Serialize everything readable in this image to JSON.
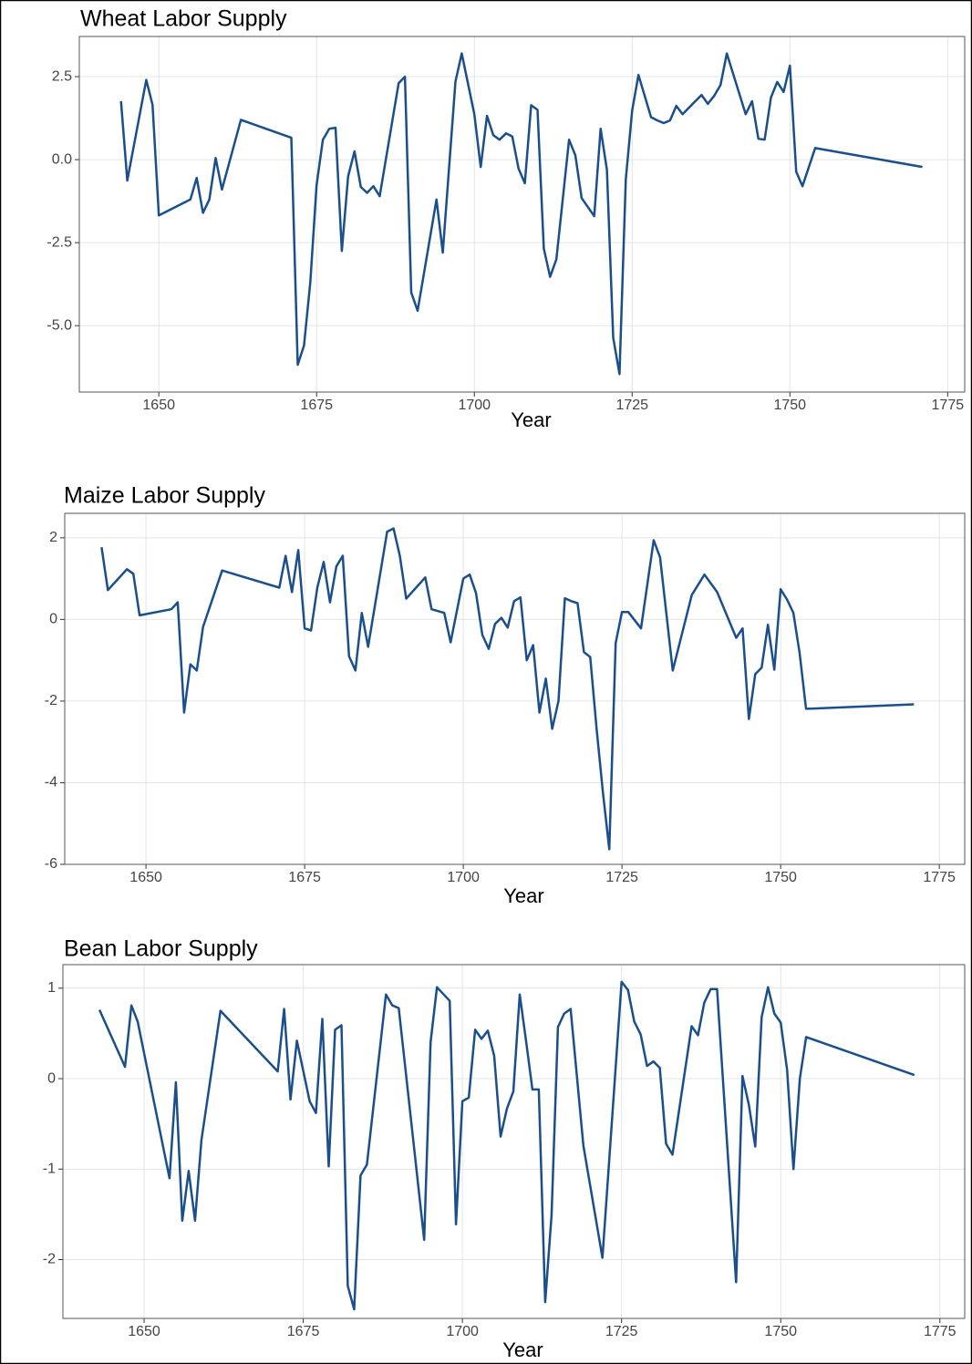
{
  "chart_data": [
    {
      "type": "line",
      "title": "Wheat Labor Supply",
      "x_label": "Year",
      "color": "#1a4f8b",
      "grid": true,
      "x": [
        1644,
        1645,
        1648,
        1649,
        1650,
        1655,
        1656,
        1657,
        1658,
        1659,
        1660,
        1663,
        1671,
        1672,
        1673,
        1674,
        1675,
        1676,
        1677,
        1678,
        1679,
        1680,
        1681,
        1682,
        1683,
        1684,
        1685,
        1688,
        1689,
        1690,
        1691,
        1694,
        1695,
        1697,
        1698,
        1700,
        1701,
        1702,
        1703,
        1704,
        1705,
        1706,
        1707,
        1708,
        1709,
        1710,
        1711,
        1712,
        1713,
        1715,
        1716,
        1717,
        1719,
        1720,
        1721,
        1722,
        1723,
        1724,
        1725,
        1726,
        1728,
        1729,
        1730,
        1731,
        1732,
        1733,
        1736,
        1737,
        1738,
        1739,
        1740,
        1743,
        1744,
        1745,
        1746,
        1747,
        1748,
        1749,
        1750,
        1751,
        1752,
        1754,
        1771
      ],
      "values": [
        1.76,
        -0.63,
        2.4,
        1.65,
        -1.68,
        -1.2,
        -0.55,
        -1.6,
        -1.2,
        0.05,
        -0.9,
        1.2,
        0.66,
        -6.18,
        -5.6,
        -3.7,
        -0.77,
        0.6,
        0.93,
        0.96,
        -2.75,
        -0.5,
        0.25,
        -0.82,
        -1.0,
        -0.8,
        -1.1,
        2.3,
        2.5,
        -4.0,
        -4.55,
        -1.2,
        -2.8,
        2.35,
        3.2,
        1.37,
        -0.22,
        1.32,
        0.74,
        0.6,
        0.79,
        0.7,
        -0.27,
        -0.71,
        1.64,
        1.5,
        -2.68,
        -3.53,
        -3.0,
        0.6,
        0.13,
        -1.16,
        -1.7,
        0.93,
        -0.3,
        -5.36,
        -6.46,
        -0.6,
        1.48,
        2.55,
        1.28,
        1.18,
        1.1,
        1.18,
        1.62,
        1.37,
        1.95,
        1.68,
        1.92,
        2.25,
        3.2,
        1.37,
        1.76,
        0.63,
        0.6,
        1.87,
        2.34,
        2.04,
        2.83,
        -0.36,
        -0.8,
        0.35,
        -0.22
      ],
      "xlim": [
        1637.4,
        1777.7
      ],
      "xticks": [
        1650,
        1675,
        1700,
        1725,
        1750,
        1775
      ],
      "ylim": [
        -7.0,
        3.71
      ],
      "yticks": [
        {
          "value": 2.5,
          "label": "2.5"
        },
        {
          "value": 0,
          "label": "0.0"
        },
        {
          "value": -2.5,
          "label": "-2.5"
        },
        {
          "value": -5,
          "label": "-5.0"
        }
      ]
    },
    {
      "type": "line",
      "title": "Maize Labor Supply",
      "x_label": "Year",
      "color": "#1a4f8b",
      "grid": true,
      "x": [
        1643,
        1644,
        1647,
        1648,
        1649,
        1654,
        1655,
        1656,
        1657,
        1658,
        1659,
        1662,
        1671,
        1672,
        1673,
        1674,
        1675,
        1676,
        1677,
        1678,
        1679,
        1680,
        1681,
        1682,
        1683,
        1684,
        1685,
        1688,
        1689,
        1690,
        1691,
        1694,
        1695,
        1697,
        1698,
        1700,
        1701,
        1702,
        1703,
        1704,
        1705,
        1706,
        1707,
        1708,
        1709,
        1710,
        1711,
        1712,
        1713,
        1714,
        1715,
        1716,
        1717,
        1718,
        1719,
        1720,
        1721,
        1722,
        1723,
        1724,
        1725,
        1726,
        1728,
        1730,
        1731,
        1733,
        1736,
        1738,
        1740,
        1743,
        1744,
        1745,
        1746,
        1747,
        1748,
        1749,
        1750,
        1751,
        1752,
        1753,
        1754,
        1771
      ],
      "values": [
        1.77,
        0.72,
        1.23,
        1.12,
        0.1,
        0.25,
        0.42,
        -2.28,
        -1.1,
        -1.25,
        -0.18,
        1.2,
        0.78,
        1.56,
        0.67,
        1.7,
        -0.22,
        -0.27,
        0.78,
        1.41,
        0.42,
        1.3,
        1.56,
        -0.9,
        -1.25,
        0.16,
        -0.67,
        2.15,
        2.23,
        1.56,
        0.51,
        1.03,
        0.25,
        0.16,
        -0.56,
        1.0,
        1.1,
        0.65,
        -0.38,
        -0.72,
        -0.11,
        0.04,
        -0.2,
        0.45,
        0.54,
        -1.0,
        -0.63,
        -2.28,
        -1.45,
        -2.68,
        -2.0,
        0.52,
        0.45,
        0.4,
        -0.8,
        -0.92,
        -2.68,
        -4.25,
        -5.63,
        -0.58,
        0.18,
        0.18,
        -0.22,
        1.94,
        1.52,
        -1.25,
        0.6,
        1.1,
        0.67,
        -0.45,
        -0.22,
        -2.44,
        -1.34,
        -1.18,
        -0.13,
        -1.23,
        0.74,
        0.49,
        0.16,
        -0.83,
        -2.19,
        -2.08
      ],
      "xlim": [
        1637.2,
        1779.0
      ],
      "xticks": [
        1650,
        1675,
        1700,
        1725,
        1750,
        1775
      ],
      "ylim": [
        -6.0,
        2.6
      ],
      "yticks": [
        2,
        0,
        -2,
        -4,
        -6
      ]
    },
    {
      "type": "line",
      "title": "Bean Labor Supply",
      "x_label": "Year",
      "color": "#1a4f8b",
      "grid": true,
      "x": [
        1643,
        1647,
        1648,
        1649,
        1654,
        1655,
        1656,
        1657,
        1658,
        1659,
        1662,
        1671,
        1672,
        1673,
        1674,
        1676,
        1677,
        1678,
        1679,
        1680,
        1681,
        1682,
        1683,
        1684,
        1685,
        1688,
        1689,
        1690,
        1694,
        1695,
        1696,
        1698,
        1699,
        1700,
        1701,
        1702,
        1703,
        1704,
        1705,
        1706,
        1707,
        1708,
        1709,
        1710,
        1711,
        1712,
        1713,
        1714,
        1715,
        1716,
        1717,
        1719,
        1722,
        1725,
        1726,
        1727,
        1728,
        1729,
        1730,
        1731,
        1732,
        1733,
        1736,
        1737,
        1738,
        1739,
        1740,
        1743,
        1744,
        1745,
        1746,
        1747,
        1748,
        1749,
        1750,
        1751,
        1752,
        1753,
        1754,
        1771
      ],
      "values": [
        0.76,
        0.13,
        0.81,
        0.63,
        -1.1,
        -0.04,
        -1.57,
        -1.02,
        -1.57,
        -0.68,
        0.75,
        0.08,
        0.77,
        -0.23,
        0.42,
        -0.25,
        -0.38,
        0.66,
        -0.97,
        0.54,
        0.59,
        -2.29,
        -2.55,
        -1.07,
        -0.95,
        0.93,
        0.81,
        0.78,
        -1.78,
        0.4,
        1.01,
        0.86,
        -1.61,
        -0.25,
        -0.21,
        0.54,
        0.44,
        0.53,
        0.25,
        -0.64,
        -0.33,
        -0.14,
        0.93,
        0.42,
        -0.12,
        -0.12,
        -2.47,
        -1.51,
        0.57,
        0.72,
        0.77,
        -0.74,
        -1.98,
        1.07,
        0.98,
        0.63,
        0.49,
        0.14,
        0.19,
        0.12,
        -0.72,
        -0.84,
        0.58,
        0.48,
        0.84,
        0.99,
        0.99,
        -2.25,
        0.03,
        -0.29,
        -0.75,
        0.68,
        1.01,
        0.72,
        0.62,
        0.1,
        -1.0,
        0.0,
        0.46,
        0.04
      ],
      "xlim": [
        1637.25,
        1778.9
      ],
      "xticks": [
        1650,
        1675,
        1700,
        1725,
        1750,
        1775
      ],
      "ylim": [
        -2.65,
        1.26
      ],
      "yticks": [
        1,
        0,
        -1,
        -2
      ]
    }
  ]
}
